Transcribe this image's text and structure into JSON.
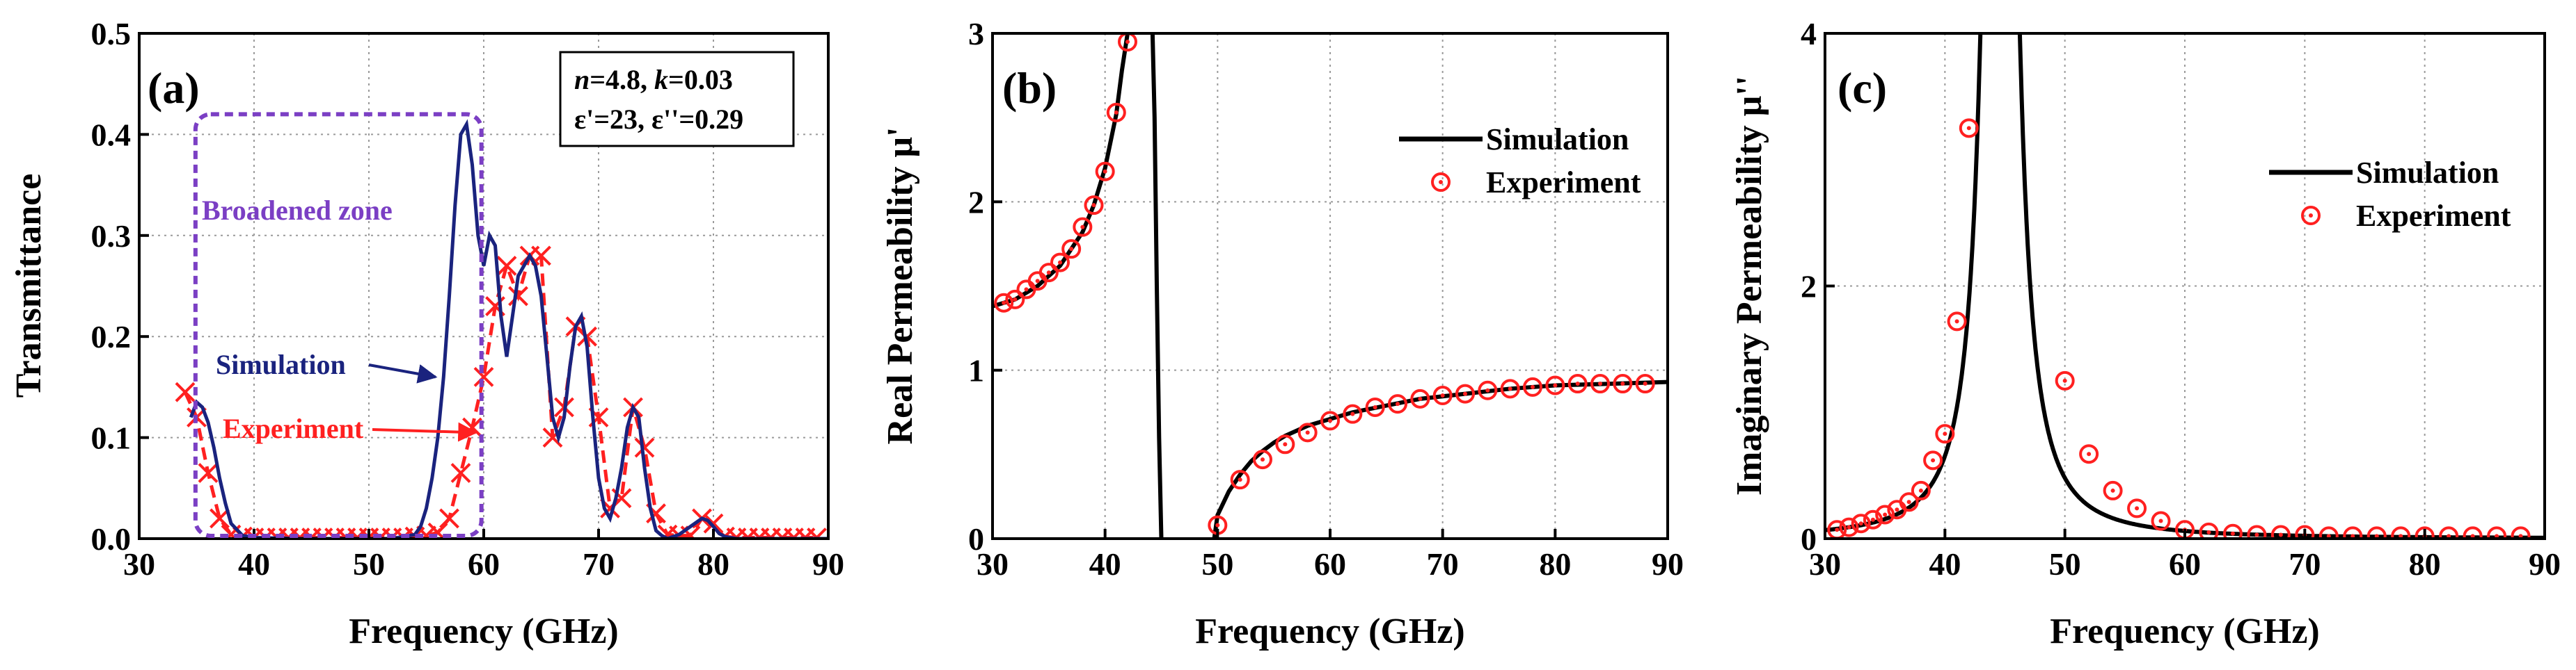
{
  "colors": {
    "simulation_a": "#1a237e",
    "experiment_a": "#ff2020",
    "simulation_bc": "#000000",
    "experiment_bc": "#ff2020",
    "broadened_zone": "#7b3fc4",
    "grid": "#9a9a9a"
  },
  "chart_data": [
    {
      "id": "a",
      "type": "line",
      "panel_label": "(a)",
      "xlabel": "Frequency (GHz)",
      "ylabel": "Transmittance",
      "xlim": [
        30,
        90
      ],
      "ylim": [
        0.0,
        0.5
      ],
      "xticks": [
        30,
        40,
        50,
        60,
        70,
        80,
        90
      ],
      "yticks": [
        0.0,
        0.1,
        0.2,
        0.3,
        0.4,
        0.5
      ],
      "ytick_labels": [
        "0.0",
        "0.1",
        "0.2",
        "0.3",
        "0.4",
        "0.5"
      ],
      "grid": true,
      "params_box": {
        "line1_n": "n",
        "line1_nval": "=4.8, ",
        "line1_k": "k",
        "line1_kval": "=0.03",
        "line2": "ε'=23, ε''=0.29"
      },
      "broadened_zone": {
        "label": "Broadened zone",
        "x_range": [
          34.9,
          59.8
        ],
        "y_range": [
          0.0,
          0.42
        ]
      },
      "series": [
        {
          "name": "Simulation",
          "style": "solid",
          "x": [
            34.5,
            35,
            35.5,
            36,
            36.5,
            37,
            37.5,
            38,
            39,
            40,
            44,
            48,
            50,
            52,
            54,
            54.5,
            55,
            55.5,
            56,
            56.5,
            57,
            57.5,
            58,
            58.5,
            59,
            59.5,
            60,
            60.5,
            61,
            61.5,
            62,
            62.5,
            63,
            63.5,
            64,
            64.5,
            65,
            65.5,
            66,
            66.5,
            67,
            67.5,
            68,
            68.5,
            69,
            69.5,
            70,
            70.5,
            71,
            71.5,
            72,
            72.5,
            73,
            73.5,
            74,
            74.5,
            75,
            75.5,
            76,
            77,
            78,
            79,
            79.5,
            80,
            80.5,
            81,
            82,
            90
          ],
          "y": [
            0.12,
            0.135,
            0.13,
            0.115,
            0.09,
            0.06,
            0.035,
            0.015,
            0.003,
            0.001,
            0.0,
            0.0,
            0.0,
            0.0,
            0.004,
            0.012,
            0.03,
            0.06,
            0.1,
            0.16,
            0.24,
            0.33,
            0.4,
            0.41,
            0.37,
            0.3,
            0.27,
            0.3,
            0.29,
            0.22,
            0.18,
            0.22,
            0.26,
            0.27,
            0.28,
            0.27,
            0.24,
            0.18,
            0.12,
            0.1,
            0.12,
            0.17,
            0.21,
            0.22,
            0.19,
            0.12,
            0.06,
            0.03,
            0.02,
            0.04,
            0.07,
            0.11,
            0.13,
            0.12,
            0.07,
            0.03,
            0.008,
            0.003,
            0.0,
            0.004,
            0.012,
            0.02,
            0.018,
            0.012,
            0.005,
            0.002,
            0.0,
            0.0
          ]
        },
        {
          "name": "Experiment",
          "style": "dashed-cross",
          "x": [
            34,
            35,
            36,
            37,
            38,
            39,
            40,
            41,
            42,
            43,
            44,
            45,
            46,
            47,
            48,
            49,
            50,
            51,
            52,
            53,
            54,
            55,
            56,
            57,
            58,
            59,
            60,
            61,
            62,
            63,
            64,
            65,
            66,
            67,
            68,
            69,
            70,
            71,
            72,
            73,
            74,
            75,
            76,
            77,
            78,
            79,
            80,
            81,
            82,
            83,
            84,
            85,
            86,
            87,
            88,
            89
          ],
          "y": [
            0.145,
            0.12,
            0.065,
            0.02,
            0.004,
            0.002,
            0.001,
            0.001,
            0.001,
            0.001,
            0.001,
            0.001,
            0.001,
            0.001,
            0.001,
            0.001,
            0.001,
            0.001,
            0.001,
            0.001,
            0.002,
            0.003,
            0.006,
            0.02,
            0.065,
            0.11,
            0.16,
            0.23,
            0.27,
            0.24,
            0.28,
            0.28,
            0.1,
            0.13,
            0.21,
            0.2,
            0.12,
            0.03,
            0.04,
            0.13,
            0.09,
            0.025,
            0.004,
            0.003,
            0.003,
            0.02,
            0.015,
            0.002,
            0.001,
            0.001,
            0.001,
            0.001,
            0.001,
            0.001,
            0.001,
            0.001
          ]
        }
      ],
      "annotations": [
        {
          "text": "Simulation",
          "color_key": "simulation_a",
          "arrow_to": [
            55.8,
            0.16
          ]
        },
        {
          "text": "Experiment",
          "color_key": "experiment_a",
          "arrow_to": [
            59.3,
            0.105
          ]
        }
      ]
    },
    {
      "id": "b",
      "type": "line",
      "panel_label": "(b)",
      "xlabel": "Frequency (GHz)",
      "ylabel": "Real Permeability μ'",
      "xlim": [
        30,
        90
      ],
      "ylim": [
        0,
        3
      ],
      "xticks": [
        30,
        40,
        50,
        60,
        70,
        80,
        90
      ],
      "yticks": [
        0,
        1,
        2,
        3
      ],
      "ytick_labels": [
        "0",
        "1",
        "2",
        "3"
      ],
      "grid": true,
      "legend": {
        "position": "top-right",
        "entries": [
          "Simulation",
          "Experiment"
        ]
      },
      "series": [
        {
          "name": "Simulation",
          "style": "solid",
          "segments": [
            {
              "x": [
                30,
                32,
                34,
                36,
                38,
                39,
                40,
                41,
                41.5,
                42,
                42.5,
                43,
                43.3,
                43.6
              ],
              "y": [
                1.38,
                1.42,
                1.5,
                1.62,
                1.82,
                1.98,
                2.2,
                2.52,
                2.78,
                3.0,
                3.02,
                3.04,
                3.05,
                3.05
              ]
            },
            {
              "x": [
                44.2,
                44.4,
                44.6,
                44.8,
                45.0
              ],
              "y": [
                3.05,
                2.5,
                1.5,
                0.6,
                0.0
              ]
            },
            {
              "x": [
                49.7,
                50,
                51,
                52,
                53,
                54,
                55,
                56,
                58,
                60,
                62,
                65,
                68,
                72,
                76,
                80,
                85,
                90
              ],
              "y": [
                0.0,
                0.14,
                0.28,
                0.38,
                0.46,
                0.52,
                0.57,
                0.61,
                0.67,
                0.71,
                0.75,
                0.79,
                0.83,
                0.86,
                0.89,
                0.91,
                0.92,
                0.93
              ]
            }
          ]
        },
        {
          "name": "Experiment",
          "style": "circle-dot",
          "x": [
            31,
            32,
            33,
            34,
            35,
            36,
            37,
            38,
            39,
            40,
            41,
            42,
            50,
            52,
            54,
            56,
            58,
            60,
            62,
            64,
            66,
            68,
            70,
            72,
            74,
            76,
            78,
            80,
            82,
            84,
            86,
            88
          ],
          "y": [
            1.4,
            1.42,
            1.48,
            1.53,
            1.58,
            1.64,
            1.72,
            1.85,
            1.98,
            2.18,
            2.53,
            2.95,
            0.08,
            0.35,
            0.47,
            0.56,
            0.63,
            0.7,
            0.74,
            0.78,
            0.8,
            0.83,
            0.85,
            0.86,
            0.88,
            0.89,
            0.9,
            0.91,
            0.92,
            0.92,
            0.92,
            0.92
          ]
        }
      ]
    },
    {
      "id": "c",
      "type": "line",
      "panel_label": "(c)",
      "xlabel": "Frequency (GHz)",
      "ylabel": "Imaginary Permeability μ''",
      "xlim": [
        30,
        90
      ],
      "ylim": [
        0,
        4
      ],
      "xticks": [
        30,
        40,
        50,
        60,
        70,
        80,
        90
      ],
      "yticks": [
        0,
        2,
        4
      ],
      "ytick_labels": [
        "0",
        "2",
        "4"
      ],
      "grid": true,
      "legend": {
        "position": "top-right",
        "entries": [
          "Simulation",
          "Experiment"
        ]
      },
      "series": [
        {
          "name": "Simulation",
          "style": "solid",
          "lorentz": {
            "center": 44.6,
            "peak": 16,
            "half_width": 0.95
          }
        },
        {
          "name": "Experiment",
          "style": "circle-dot",
          "x": [
            31,
            32,
            33,
            34,
            35,
            36,
            37,
            38,
            39,
            40,
            41,
            42,
            50,
            52,
            54,
            56,
            58,
            60,
            62,
            64,
            66,
            68,
            70,
            72,
            74,
            76,
            78,
            80,
            82,
            84,
            86,
            88
          ],
          "y": [
            0.07,
            0.09,
            0.12,
            0.15,
            0.19,
            0.23,
            0.29,
            0.38,
            0.62,
            0.83,
            1.72,
            3.25,
            1.25,
            0.67,
            0.38,
            0.24,
            0.14,
            0.07,
            0.05,
            0.04,
            0.03,
            0.03,
            0.03,
            0.02,
            0.02,
            0.02,
            0.02,
            0.02,
            0.02,
            0.02,
            0.02,
            0.02
          ]
        }
      ]
    }
  ]
}
